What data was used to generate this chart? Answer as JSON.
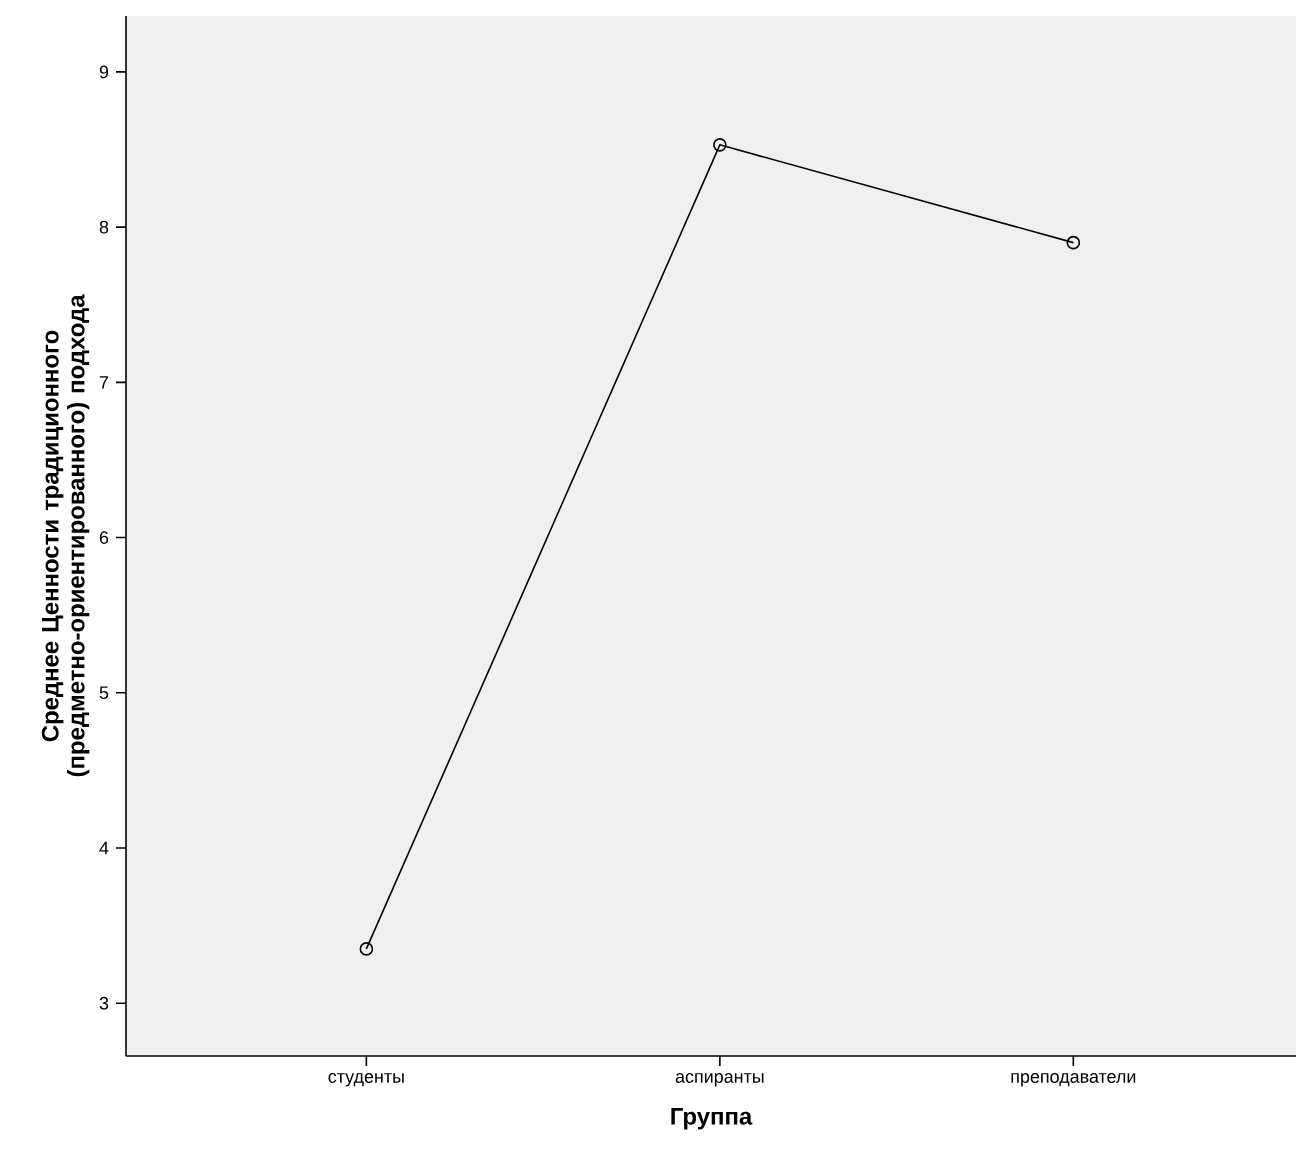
{
  "chart_data": {
    "type": "line",
    "xlabel": "Группа",
    "ylabel": "Среднее Ценности традиционного (предметно-ориентированного) подхода",
    "categories": [
      "студенты",
      "аспиранты",
      "преподаватели"
    ],
    "values": [
      3.35,
      8.53,
      7.9
    ],
    "color": "#000000",
    "ylim": [
      2.66,
      9.36
    ],
    "yticks": [
      3,
      4,
      5,
      6,
      7,
      8,
      9
    ],
    "marker": "circle",
    "line_style": "solid"
  }
}
